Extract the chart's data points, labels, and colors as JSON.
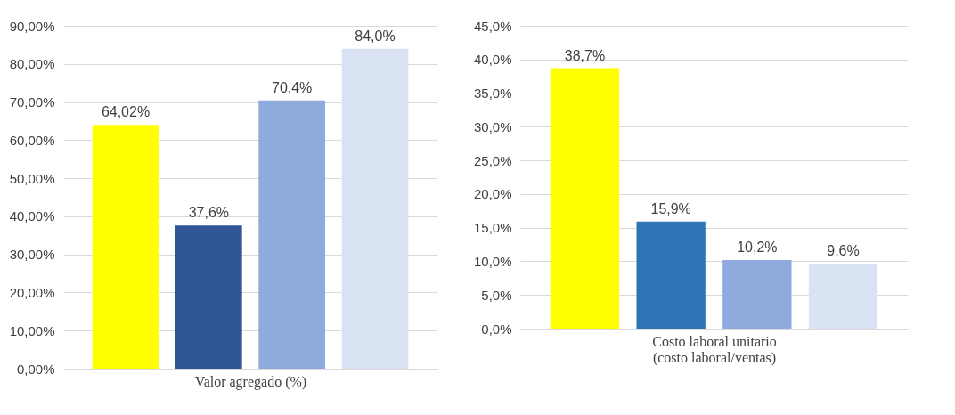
{
  "chart_data": [
    {
      "type": "bar",
      "xlabel": "Valor agregado (%)",
      "categories": [
        null,
        null,
        null,
        null
      ],
      "values": [
        64.02,
        37.6,
        70.4,
        84.0
      ],
      "colors": [
        "#ffff00",
        "#2f5597",
        "#8faadc",
        "#dae3f3"
      ],
      "value_labels": [
        "64,02%",
        "37,6%",
        "70,4%",
        "84,0%"
      ],
      "ylim": [
        0,
        90
      ],
      "yticks": [
        {
          "value": 0,
          "label": "0,00%"
        },
        {
          "value": 10,
          "label": "10,00%"
        },
        {
          "value": 20,
          "label": "20,00%"
        },
        {
          "value": 30,
          "label": "30,00%"
        },
        {
          "value": 40,
          "label": "40,00%"
        },
        {
          "value": 50,
          "label": "50,00%"
        },
        {
          "value": 60,
          "label": "60,00%"
        },
        {
          "value": 70,
          "label": "70,00%"
        },
        {
          "value": 80,
          "label": "80,00%"
        },
        {
          "value": 90,
          "label": "90,00%"
        }
      ],
      "grid": "y",
      "tick_labels": "y"
    },
    {
      "type": "bar",
      "xlabel": "Costo laboral unitario (costo laboral/ventas)",
      "categories": [
        null,
        null,
        null,
        null
      ],
      "values": [
        38.7,
        15.9,
        10.2,
        9.6
      ],
      "colors": [
        "#ffff00",
        "#2e75b6",
        "#8faadc",
        "#dae3f3"
      ],
      "value_labels": [
        "38,7%",
        "15,9%",
        "10,2%",
        "9,6%"
      ],
      "ylim": [
        0,
        45
      ],
      "yticks": [
        {
          "value": 0,
          "label": "0,0%"
        },
        {
          "value": 5,
          "label": "5,0%"
        },
        {
          "value": 10,
          "label": "10,0%"
        },
        {
          "value": 15,
          "label": "15,0%"
        },
        {
          "value": 20,
          "label": "20,0%"
        },
        {
          "value": 25,
          "label": "25,0%"
        },
        {
          "value": 30,
          "label": "30,0%"
        },
        {
          "value": 35,
          "label": "35,0%"
        },
        {
          "value": 40,
          "label": "40,0%"
        },
        {
          "value": 45,
          "label": "45,0%"
        }
      ],
      "grid": "y",
      "tick_labels": "y"
    }
  ]
}
